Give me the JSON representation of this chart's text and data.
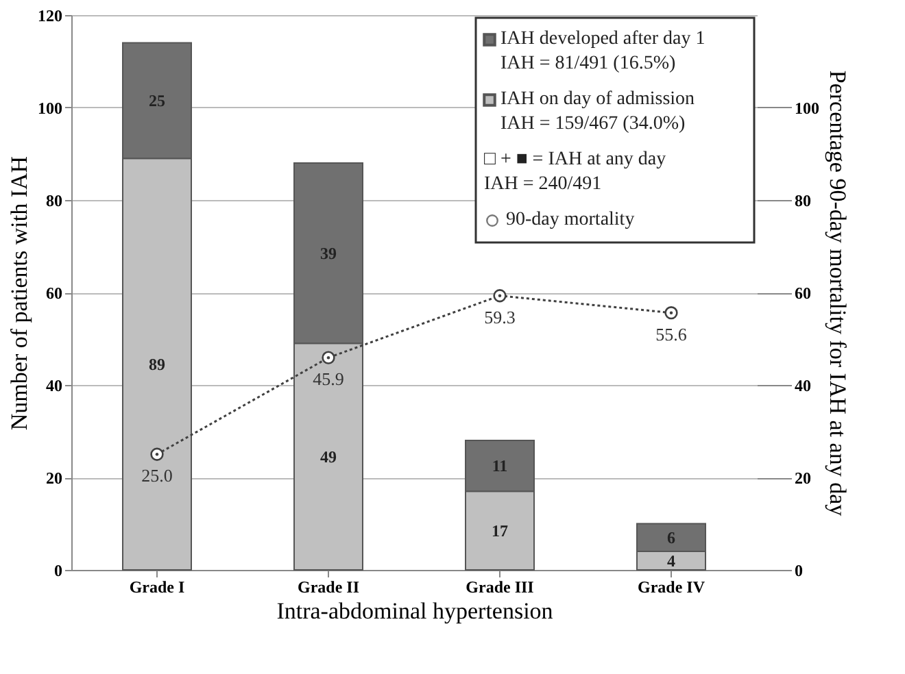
{
  "chart_data": {
    "type": "bar",
    "stacked": true,
    "categories": [
      "Grade I",
      "Grade II",
      "Grade III",
      "Grade IV"
    ],
    "xlabel": "Intra-abdominal hypertension",
    "ylabel": "Number of patients with IAH",
    "y2label": "Percentage 90-day mortality for IAH at any day",
    "ylim": [
      0,
      120
    ],
    "yticks": [
      0,
      20,
      40,
      60,
      80,
      100,
      120
    ],
    "y2lim": [
      0,
      120
    ],
    "y2ticks": [
      0,
      20,
      40,
      60,
      80,
      100
    ],
    "grid": "y",
    "legend": "top right",
    "data_labels": true,
    "annotations": [
      "□ + ■ = IAH at any day\nIAH = 240/491"
    ],
    "series": [
      {
        "name": "IAH on day of admission\nIAH = 159/467 (34.0%)",
        "color": "#c0c0c0",
        "values": [
          89,
          49,
          17,
          4
        ]
      },
      {
        "name": "IAH developed after day 1\nIAH = 81/491 (16.5%)",
        "color": "#707070",
        "values": [
          25,
          39,
          11,
          6
        ]
      },
      {
        "name": "90-day mortality",
        "type": "line",
        "axis": "y2",
        "color": "#404040",
        "line_style": "dotted",
        "marker": "circle",
        "values": [
          25.0,
          45.9,
          59.3,
          55.6
        ],
        "value_labels": [
          "25.0",
          "45.9",
          "59.3",
          "55.6"
        ]
      }
    ]
  }
}
